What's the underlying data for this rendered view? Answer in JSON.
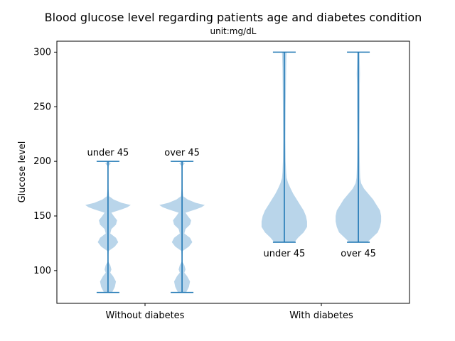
{
  "chart_data": {
    "type": "violin",
    "title": "Blood glucose level regarding patients age and diabetes condition",
    "subtitle": "unit:mg/dL",
    "ylabel": "Glucose level",
    "xlabel": "",
    "ylim": [
      70,
      310
    ],
    "yticks": [
      100,
      150,
      200,
      250,
      300
    ],
    "xlim": [
      0.5,
      2.5
    ],
    "xticks": [
      {
        "position": 1,
        "label": "Without diabetes"
      },
      {
        "position": 2,
        "label": "With diabetes"
      }
    ],
    "colors": {
      "body": "#b9d5ea",
      "line": "#1f77b4"
    },
    "violins": [
      {
        "group": "Without diabetes",
        "label": "under 45",
        "label_placement": "above",
        "x": 0.79,
        "min": 80,
        "max": 200,
        "profile": [
          [
            80,
            0.18
          ],
          [
            85,
            0.3
          ],
          [
            90,
            0.35
          ],
          [
            95,
            0.22
          ],
          [
            98,
            0.1
          ],
          [
            101,
            0.15
          ],
          [
            105,
            0.1
          ],
          [
            108,
            0.02
          ],
          [
            112,
            0.01
          ],
          [
            118,
            0.03
          ],
          [
            122,
            0.3
          ],
          [
            126,
            0.45
          ],
          [
            130,
            0.35
          ],
          [
            134,
            0.1
          ],
          [
            138,
            0.15
          ],
          [
            142,
            0.35
          ],
          [
            146,
            0.4
          ],
          [
            150,
            0.25
          ],
          [
            153,
            0.15
          ],
          [
            156,
            0.6
          ],
          [
            158,
            0.85
          ],
          [
            160,
            1.0
          ],
          [
            162,
            0.6
          ],
          [
            165,
            0.25
          ],
          [
            168,
            0.05
          ],
          [
            175,
            0.02
          ],
          [
            190,
            0.01
          ],
          [
            196,
            0.03
          ],
          [
            198,
            0.12
          ],
          [
            200,
            0.03
          ]
        ]
      },
      {
        "group": "Without diabetes",
        "label": "over 45",
        "label_placement": "above",
        "x": 1.21,
        "min": 80,
        "max": 200,
        "profile": [
          [
            80,
            0.18
          ],
          [
            85,
            0.3
          ],
          [
            90,
            0.35
          ],
          [
            95,
            0.22
          ],
          [
            98,
            0.1
          ],
          [
            101,
            0.15
          ],
          [
            105,
            0.1
          ],
          [
            108,
            0.02
          ],
          [
            112,
            0.01
          ],
          [
            118,
            0.03
          ],
          [
            122,
            0.3
          ],
          [
            126,
            0.45
          ],
          [
            130,
            0.35
          ],
          [
            134,
            0.1
          ],
          [
            138,
            0.15
          ],
          [
            142,
            0.35
          ],
          [
            146,
            0.4
          ],
          [
            150,
            0.25
          ],
          [
            153,
            0.15
          ],
          [
            156,
            0.6
          ],
          [
            158,
            0.85
          ],
          [
            160,
            1.0
          ],
          [
            162,
            0.6
          ],
          [
            165,
            0.25
          ],
          [
            168,
            0.05
          ],
          [
            175,
            0.02
          ],
          [
            190,
            0.01
          ],
          [
            196,
            0.03
          ],
          [
            198,
            0.12
          ],
          [
            200,
            0.03
          ]
        ]
      },
      {
        "group": "With diabetes",
        "label": "under 45",
        "label_placement": "below",
        "x": 1.79,
        "min": 126,
        "max": 300,
        "profile": [
          [
            126,
            0.45
          ],
          [
            130,
            0.6
          ],
          [
            135,
            0.85
          ],
          [
            140,
            1.0
          ],
          [
            145,
            1.0
          ],
          [
            150,
            0.95
          ],
          [
            155,
            0.85
          ],
          [
            160,
            0.7
          ],
          [
            165,
            0.55
          ],
          [
            170,
            0.4
          ],
          [
            175,
            0.28
          ],
          [
            180,
            0.17
          ],
          [
            185,
            0.1
          ],
          [
            190,
            0.08
          ],
          [
            200,
            0.06
          ],
          [
            220,
            0.05
          ],
          [
            250,
            0.06
          ],
          [
            270,
            0.07
          ],
          [
            285,
            0.08
          ],
          [
            295,
            0.09
          ],
          [
            300,
            0.1
          ]
        ]
      },
      {
        "group": "With diabetes",
        "label": "over 45",
        "label_placement": "below",
        "x": 2.21,
        "min": 126,
        "max": 300,
        "profile": [
          [
            126,
            0.4
          ],
          [
            130,
            0.6
          ],
          [
            135,
            0.85
          ],
          [
            140,
            0.95
          ],
          [
            145,
            1.0
          ],
          [
            150,
            1.0
          ],
          [
            155,
            0.95
          ],
          [
            160,
            0.8
          ],
          [
            165,
            0.65
          ],
          [
            170,
            0.45
          ],
          [
            175,
            0.25
          ],
          [
            180,
            0.12
          ],
          [
            185,
            0.08
          ],
          [
            190,
            0.07
          ],
          [
            200,
            0.06
          ],
          [
            220,
            0.05
          ],
          [
            250,
            0.06
          ],
          [
            270,
            0.06
          ],
          [
            280,
            0.07
          ],
          [
            290,
            0.06
          ],
          [
            300,
            0.05
          ]
        ]
      }
    ]
  }
}
